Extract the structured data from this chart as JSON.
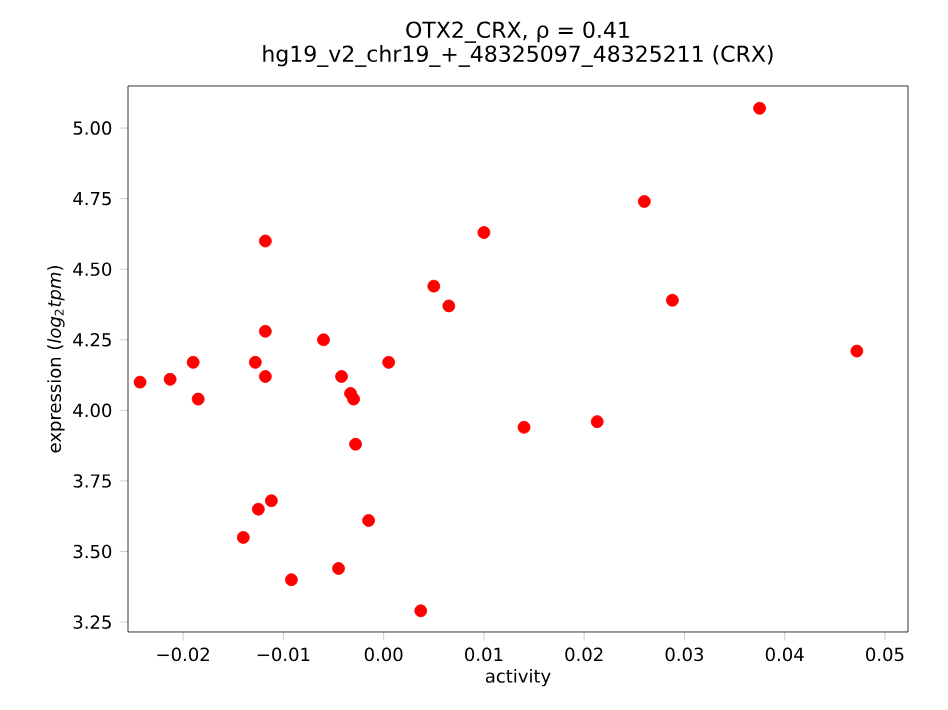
{
  "chart_data": {
    "type": "scatter",
    "title": "OTX2_CRX, ρ = 0.41",
    "subtitle": "hg19_v2_chr19_+_48325097_48325211 (CRX)",
    "xlabel": "activity",
    "ylabel": "expression (*log*$_{2}$*tpm*)",
    "grid": false,
    "xlim": [
      -0.0255,
      0.0523
    ],
    "ylim": [
      3.215,
      5.149
    ],
    "xticks": [
      {
        "value": -0.02,
        "label": "−0.02"
      },
      {
        "value": -0.01,
        "label": "−0.01"
      },
      {
        "value": 0,
        "label": "0.00"
      },
      {
        "value": 0.01,
        "label": "0.01"
      },
      {
        "value": 0.02,
        "label": "0.02"
      },
      {
        "value": 0.03,
        "label": "0.03"
      },
      {
        "value": 0.04,
        "label": "0.04"
      },
      {
        "value": 0.05,
        "label": "0.05"
      }
    ],
    "yticks": [
      {
        "value": 3.25,
        "label": "3.25"
      },
      {
        "value": 3.5,
        "label": "3.50"
      },
      {
        "value": 3.75,
        "label": "3.75"
      },
      {
        "value": 4.0,
        "label": "4.00"
      },
      {
        "value": 4.25,
        "label": "4.25"
      },
      {
        "value": 4.5,
        "label": "4.50"
      },
      {
        "value": 4.75,
        "label": "4.75"
      },
      {
        "value": 5.0,
        "label": "5.00"
      }
    ],
    "series": [
      {
        "color": "#ff0000",
        "x": [
          -0.0243,
          -0.0213,
          -0.019,
          -0.0185,
          -0.0118,
          -0.0118,
          -0.0128,
          -0.0118,
          -0.006,
          -0.0042,
          -0.0033,
          -0.003,
          0.0005,
          -0.0028,
          -0.0125,
          -0.0112,
          -0.014,
          -0.0015,
          -0.0092,
          -0.0045,
          0.0037,
          0.005,
          0.0065,
          0.01,
          0.014,
          0.0213,
          0.026,
          0.0288,
          0.0375,
          0.0472
        ],
        "values": [
          4.1,
          4.11,
          4.17,
          4.04,
          4.6,
          4.28,
          4.17,
          4.12,
          4.25,
          4.12,
          4.06,
          4.04,
          4.17,
          3.88,
          3.65,
          3.68,
          3.55,
          3.61,
          3.4,
          3.44,
          3.29,
          4.44,
          4.37,
          4.63,
          3.94,
          3.96,
          4.74,
          4.39,
          5.07,
          4.21
        ]
      }
    ]
  }
}
